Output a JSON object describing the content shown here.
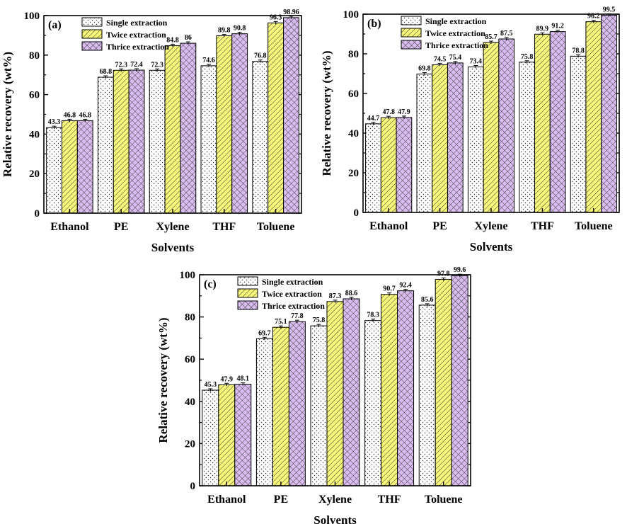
{
  "colors": {
    "single_fill": "#ffffff",
    "twice_fill": "#f7f77a",
    "thrice_fill": "#d9bdf0",
    "stroke": "#000000"
  },
  "chart_data": [
    {
      "type": "bar",
      "panel_label": "(a)",
      "categories": [
        "Ethanol",
        "PE",
        "Xylene",
        "THF",
        "Toluene"
      ],
      "series": [
        {
          "name": "Single extraction",
          "values": [
            43.3,
            68.8,
            72.3,
            74.6,
            76.8
          ],
          "labels": [
            "43.3",
            "68.8",
            "72.3",
            "74.6",
            "76.8"
          ]
        },
        {
          "name": "Twice extraction",
          "values": [
            46.8,
            72.3,
            84.8,
            89.8,
            96.3
          ],
          "labels": [
            "46.8",
            "72.3",
            "84.8",
            "89.8",
            "96.3"
          ]
        },
        {
          "name": "Thrice extraction",
          "values": [
            46.8,
            72.4,
            86,
            90.8,
            98.96
          ],
          "labels": [
            "46.8",
            "72.4",
            "86",
            "90.8",
            "98.96"
          ]
        }
      ],
      "xlabel": "Solvents",
      "ylabel": "Relative recovery (wt%)",
      "ylim": [
        0,
        100
      ],
      "yticks": [
        "0",
        "20",
        "40",
        "60",
        "80",
        "100"
      ],
      "legend": "top-left"
    },
    {
      "type": "bar",
      "panel_label": "(b)",
      "categories": [
        "Ethanol",
        "PE",
        "Xylene",
        "THF",
        "Toluene"
      ],
      "series": [
        {
          "name": "Single extraction",
          "values": [
            44.7,
            69.8,
            73.4,
            75.8,
            78.8
          ],
          "labels": [
            "44.7",
            "69.8",
            "73.4",
            "75.8",
            "78.8"
          ]
        },
        {
          "name": "Twice extraction",
          "values": [
            47.8,
            74.5,
            85.7,
            89.9,
            96.2
          ],
          "labels": [
            "47.8",
            "74.5",
            "85.7",
            "89.9",
            "96.2"
          ]
        },
        {
          "name": "Thrice extraction",
          "values": [
            47.9,
            75.4,
            87.5,
            91.2,
            99.5
          ],
          "labels": [
            "47.9",
            "75.4",
            "87.5",
            "91.2",
            "99.5"
          ]
        }
      ],
      "xlabel": "Solvents",
      "ylabel": "Relative recovery (wt%)",
      "ylim": [
        0,
        100
      ],
      "yticks": [
        "0",
        "20",
        "40",
        "60",
        "80",
        "100"
      ],
      "legend": "top-left"
    },
    {
      "type": "bar",
      "panel_label": "(c)",
      "categories": [
        "Ethanol",
        "PE",
        "Xylene",
        "THF",
        "Toluene"
      ],
      "series": [
        {
          "name": "Single extraction",
          "values": [
            45.3,
            69.7,
            75.8,
            78.3,
            85.6
          ],
          "labels": [
            "45.3",
            "69.7",
            "75.8",
            "78.3",
            "85.6"
          ]
        },
        {
          "name": "Twice extraction",
          "values": [
            47.9,
            75.1,
            87.3,
            90.7,
            97.8
          ],
          "labels": [
            "47.9",
            "75.1",
            "87.3",
            "90.7",
            "97.8"
          ]
        },
        {
          "name": "Thrice extraction",
          "values": [
            48.1,
            77.8,
            88.6,
            92.4,
            99.6
          ],
          "labels": [
            "48.1",
            "77.8",
            "88.6",
            "92.4",
            "99.6"
          ]
        }
      ],
      "xlabel": "Solvents",
      "ylabel": "Relative recovery (wt%)",
      "ylim": [
        0,
        100
      ],
      "yticks": [
        "0",
        "20",
        "40",
        "60",
        "80",
        "100"
      ],
      "legend": "top-left"
    }
  ]
}
